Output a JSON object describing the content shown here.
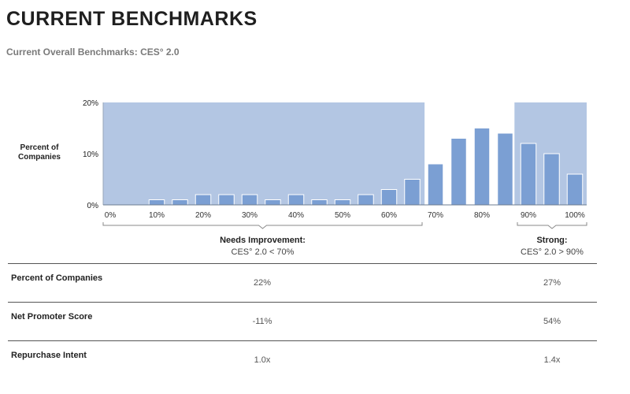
{
  "header": {
    "title": "CURRENT BENCHMARKS",
    "subtitle": "Current Overall Benchmarks: CES° 2.0"
  },
  "chart_data": {
    "type": "bar",
    "ylabel": "Percent of Companies",
    "ylim": [
      0,
      20
    ],
    "yticks": [
      "0%",
      "10%",
      "20%"
    ],
    "xticks": [
      "0%",
      "10%",
      "20%",
      "30%",
      "40%",
      "50%",
      "60%",
      "70%",
      "80%",
      "90%",
      "100%"
    ],
    "categories": [
      0,
      5,
      10,
      15,
      20,
      25,
      30,
      35,
      40,
      45,
      50,
      55,
      60,
      65,
      70,
      75,
      80,
      85,
      90,
      95,
      100
    ],
    "values": [
      0,
      0,
      1,
      1,
      2,
      2,
      2,
      1,
      2,
      1,
      1,
      2,
      3,
      5,
      8,
      13,
      15,
      14,
      12,
      10,
      6
    ],
    "bar_color": "#7b9fd3",
    "shaded_regions": [
      {
        "from": 0,
        "to": 70,
        "color": "#b3c6e3"
      },
      {
        "from": 90,
        "to": 100,
        "color": "#b3c6e3"
      }
    ],
    "annotations": [
      {
        "title": "Needs Improvement:",
        "subtitle": "CES° 2.0 < 70%"
      },
      {
        "title": "Strong:",
        "subtitle": "CES° 2.0 > 90%"
      }
    ],
    "grid": false
  },
  "table": {
    "rows": [
      {
        "label": "Percent of Companies",
        "needs_improvement": "22%",
        "strong": "27%"
      },
      {
        "label": "Net Promoter Score",
        "needs_improvement": "-11%",
        "strong": "54%"
      },
      {
        "label": "Repurchase Intent",
        "needs_improvement": "1.0x",
        "strong": "1.4x"
      }
    ]
  }
}
